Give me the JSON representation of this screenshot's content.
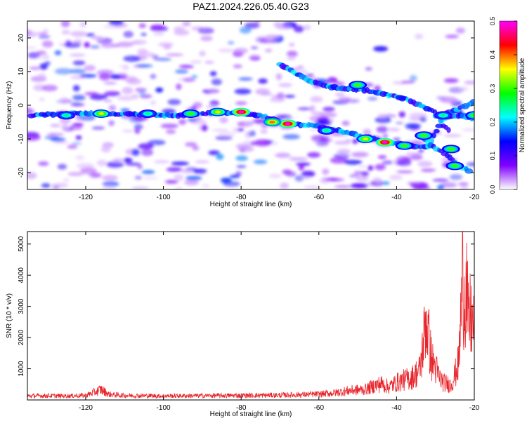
{
  "title": "PAZ1.2024.226.05.40.G23",
  "chart_data": [
    {
      "type": "heatmap",
      "xlabel": "Height of straight line (km)",
      "ylabel": "Frequency (Hz)",
      "xlim": [
        -135,
        -20
      ],
      "ylim": [
        -25,
        25
      ],
      "xticks": [
        -120,
        -100,
        -80,
        -60,
        -40,
        -20
      ],
      "yticks": [
        -20,
        -10,
        0,
        10,
        20
      ],
      "colorbar": {
        "label": "Normalized spectral amplitude",
        "range": [
          0,
          0.5
        ],
        "ticks": [
          "0.0",
          "0.1",
          "0.2",
          "0.3",
          "0.4",
          "0.5"
        ],
        "colors": [
          "#ffffff",
          "#8000ff",
          "#0000ff",
          "#00ffff",
          "#00ff00",
          "#ffff00",
          "#ff0000",
          "#ff00ff"
        ]
      },
      "ridges": [
        {
          "x": [
            -134,
            -125,
            -115,
            -105,
            -95,
            -85,
            -75,
            -68,
            -62,
            -55,
            -48,
            -42,
            -36,
            -32,
            -28,
            -24,
            -20
          ],
          "y": [
            -3,
            -2.5,
            -2.5,
            -2.8,
            -3,
            -2,
            -3,
            -5.5,
            -6,
            -7.5,
            -9.5,
            -11,
            -12,
            -12.5,
            -4,
            -3,
            -4
          ]
        },
        {
          "x": [
            -70,
            -62,
            -55,
            -48,
            -42,
            -38,
            -34,
            -30,
            -28,
            -26
          ],
          "y": [
            12,
            7,
            5,
            4.5,
            3,
            2,
            0,
            -2,
            -6,
            -8
          ]
        },
        {
          "x": [
            -34,
            -31,
            -28,
            -26,
            -24,
            -22,
            -21
          ],
          "y": [
            -9,
            -12,
            -14,
            -16,
            -18,
            -19,
            -20
          ]
        },
        {
          "x": [
            -30,
            -26,
            -22,
            -20
          ],
          "y": [
            -3,
            -2,
            0,
            1
          ]
        }
      ],
      "hotspots": [
        {
          "x": -80,
          "y": -2,
          "value": 0.5
        },
        {
          "x": -68,
          "y": -5.5,
          "value": 0.5
        },
        {
          "x": -43,
          "y": -11,
          "value": 0.5
        },
        {
          "x": -116,
          "y": -2.5,
          "value": 0.35
        },
        {
          "x": -86,
          "y": -2,
          "value": 0.35
        },
        {
          "x": -72,
          "y": -5,
          "value": 0.4
        },
        {
          "x": -48,
          "y": -10,
          "value": 0.35
        },
        {
          "x": -50,
          "y": 6,
          "value": 0.3
        },
        {
          "x": -33,
          "y": -9,
          "value": 0.3
        },
        {
          "x": -25,
          "y": -18,
          "value": 0.3
        },
        {
          "x": -20,
          "y": -3,
          "value": 0.3
        },
        {
          "x": -125,
          "y": -3,
          "value": 0.25
        },
        {
          "x": -104,
          "y": -2.5,
          "value": 0.25
        },
        {
          "x": -93,
          "y": -2.5,
          "value": 0.3
        },
        {
          "x": -58,
          "y": -7.5,
          "value": 0.25
        },
        {
          "x": -38,
          "y": -12,
          "value": 0.3
        },
        {
          "x": -28,
          "y": -3,
          "value": 0.25
        },
        {
          "x": -26,
          "y": -13,
          "value": 0.3
        }
      ]
    },
    {
      "type": "line",
      "xlabel": "Height of straight line (km)",
      "ylabel": "SNR (10 * v/v)",
      "xlim": [
        -135,
        -20
      ],
      "ylim": [
        0,
        5400
      ],
      "xticks": [
        -120,
        -100,
        -80,
        -60,
        -40,
        -20
      ],
      "yticks": [
        1000,
        2000,
        3000,
        4000,
        5000
      ],
      "color": "#e8242a",
      "series": [
        {
          "x": [
            -135,
            -130,
            -125,
            -120,
            -117,
            -116,
            -114,
            -110,
            -100,
            -90,
            -80,
            -70,
            -60,
            -56,
            -52,
            -48,
            -46,
            -44,
            -42,
            -40,
            -38,
            -36,
            -34,
            -33,
            -32.5,
            -32,
            -31,
            -30,
            -29,
            -28,
            -27,
            -26,
            -25,
            -24,
            -23.5,
            -23,
            -22.5,
            -22,
            -21.5,
            -21,
            -20.5,
            -20
          ],
          "y": [
            160,
            170,
            160,
            180,
            350,
            420,
            220,
            180,
            160,
            170,
            180,
            190,
            230,
            280,
            380,
            420,
            550,
            650,
            520,
            700,
            800,
            900,
            1200,
            2400,
            3300,
            2800,
            1600,
            1300,
            900,
            700,
            650,
            600,
            1000,
            1500,
            3200,
            5100,
            4100,
            4600,
            2800,
            3400,
            3000,
            2700
          ]
        }
      ]
    }
  ]
}
